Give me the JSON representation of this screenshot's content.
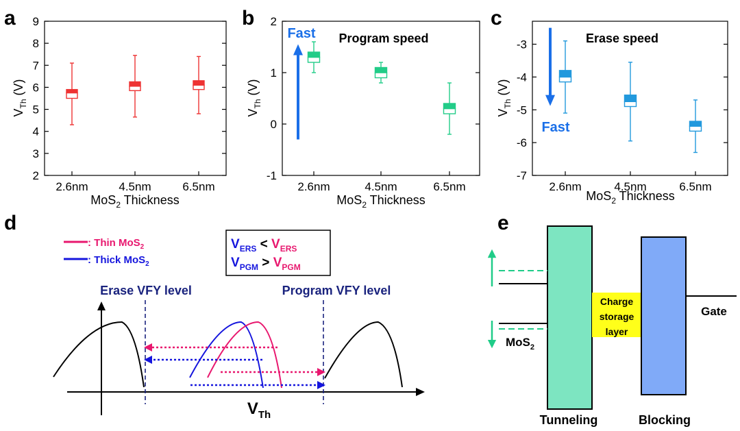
{
  "figure": {
    "panel_labels": {
      "a": "a",
      "b": "b",
      "c": "c",
      "d": "d",
      "e": "e"
    }
  },
  "chart_data": [
    {
      "panel": "a",
      "type": "box",
      "color": "#ee3333",
      "categories": [
        "2.6nm",
        "4.5nm",
        "6.5nm"
      ],
      "xlabel_main": "MoS",
      "xlabel_sub": "2",
      "xlabel_rest": " Thickness",
      "ylabel_main": "V",
      "ylabel_sub": "Th",
      "ylabel_rest": " (V)",
      "ylim": [
        2,
        9
      ],
      "yticks": [
        2,
        3,
        4,
        5,
        6,
        7,
        8,
        9
      ],
      "boxes": [
        {
          "min": 4.3,
          "q1": 5.5,
          "median": 5.75,
          "q3": 5.9,
          "max": 7.1
        },
        {
          "min": 4.65,
          "q1": 5.85,
          "median": 6.05,
          "q3": 6.25,
          "max": 7.45
        },
        {
          "min": 4.8,
          "q1": 5.9,
          "median": 6.1,
          "q3": 6.3,
          "max": 7.4
        }
      ]
    },
    {
      "panel": "b",
      "type": "box",
      "color": "#22cc88",
      "title": "Program speed",
      "annotation": "Fast",
      "annotation_color": "#1a6fe8",
      "categories": [
        "2.6nm",
        "4.5nm",
        "6.5nm"
      ],
      "xlabel_main": "MoS",
      "xlabel_sub": "2",
      "xlabel_rest": " Thickness",
      "ylabel_main": "V",
      "ylabel_sub": "Th",
      "ylabel_rest": " (V)",
      "ylim": [
        -1,
        2
      ],
      "yticks": [
        -1,
        0,
        1,
        2
      ],
      "boxes": [
        {
          "min": 1.0,
          "q1": 1.2,
          "median": 1.3,
          "q3": 1.4,
          "max": 1.6
        },
        {
          "min": 0.8,
          "q1": 0.9,
          "median": 1.0,
          "q3": 1.1,
          "max": 1.2
        },
        {
          "min": -0.2,
          "q1": 0.2,
          "median": 0.3,
          "q3": 0.4,
          "max": 0.8
        }
      ],
      "arrow": {
        "from": -0.3,
        "to": 1.5,
        "direction": "up"
      }
    },
    {
      "panel": "c",
      "type": "box",
      "color": "#2299dd",
      "title": "Erase speed",
      "annotation": "Fast",
      "annotation_color": "#1a6fe8",
      "categories": [
        "2.6nm",
        "4.5nm",
        "6.5nm"
      ],
      "xlabel_main": "MoS",
      "xlabel_sub": "2",
      "xlabel_rest": " Thickness",
      "ylabel_main": "V",
      "ylabel_sub": "Th",
      "ylabel_rest": " (V)",
      "ylim": [
        -7,
        -2.3
      ],
      "yticks": [
        -7,
        -6,
        -5,
        -4,
        -3
      ],
      "boxes": [
        {
          "min": -5.1,
          "q1": -4.15,
          "median": -4.0,
          "q3": -3.8,
          "max": -2.9
        },
        {
          "min": -5.95,
          "q1": -4.9,
          "median": -4.75,
          "q3": -4.55,
          "max": -3.55
        },
        {
          "min": -6.3,
          "q1": -5.65,
          "median": -5.5,
          "q3": -5.35,
          "max": -4.7
        }
      ],
      "arrow": {
        "from": -2.5,
        "to": -4.8,
        "direction": "down"
      }
    }
  ],
  "panel_d": {
    "legend_thin_main": ": Thin MoS",
    "legend_thin_sub": "2",
    "legend_thick_main": ": Thick MoS",
    "legend_thick_sub": "2",
    "thin_color": "#e8176e",
    "thick_color": "#1515dd",
    "vline_color": "#1a237e",
    "box_l1_a": "V",
    "box_l1_a_sub": "ERS",
    "box_l1_op": " < ",
    "box_l1_b": "V",
    "box_l1_b_sub": "ERS",
    "box_l2_a": "V",
    "box_l2_a_sub": "PGM",
    "box_l2_op": " > ",
    "box_l2_b": "V",
    "box_l2_b_sub": "PGM",
    "erase_label": "Erase VFY level",
    "program_label": "Program VFY level",
    "xaxis_main": "V",
    "xaxis_sub": "Th"
  },
  "panel_e": {
    "tunneling_label": "Tunneling",
    "blocking_label": "Blocking",
    "charge_line1": "Charge",
    "charge_line2": "storage",
    "charge_line3": "layer",
    "gate_label": "Gate",
    "mos2_main": "MoS",
    "mos2_sub": "2",
    "tunneling_color": "#7de5c1",
    "blocking_color": "#80aaf8",
    "charge_color": "#ffff1a",
    "arrow_color": "#1fcc88"
  }
}
